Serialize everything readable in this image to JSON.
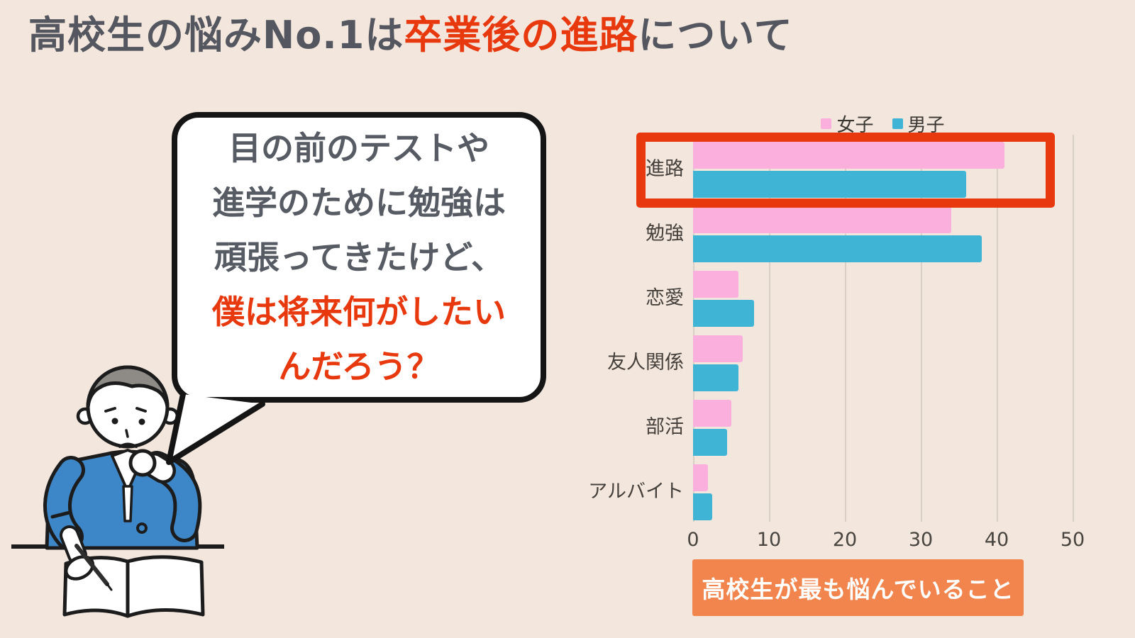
{
  "page": {
    "background": "#F3E6DD"
  },
  "title": {
    "prefix": "高校生の悩みNo.1は",
    "highlight": "卒業後の進路",
    "suffix": "について",
    "highlight_color": "#E8380D",
    "text_color": "#54575F"
  },
  "speech_bubble": {
    "lines": [
      {
        "text": "目の前のテストや",
        "color": "gray"
      },
      {
        "text": "進学のために勉強は",
        "color": "gray"
      },
      {
        "text": "頑張ってきたけど、",
        "color": "gray"
      },
      {
        "text": "僕は将来何がしたい",
        "color": "red"
      },
      {
        "text": "んだろう？",
        "color": "red"
      }
    ]
  },
  "chart_data": {
    "type": "bar",
    "orientation": "horizontal",
    "title": "",
    "categories": [
      "進路",
      "勉強",
      "恋愛",
      "友人関係",
      "部活",
      "アルバイト"
    ],
    "series": [
      {
        "name": "女子",
        "color": "#FAAFDD",
        "values": [
          41,
          34,
          6,
          6.5,
          5,
          2
        ]
      },
      {
        "name": "男子",
        "color": "#3FB4D5",
        "values": [
          36,
          38,
          8,
          6,
          4.5,
          2.5
        ]
      }
    ],
    "xlim": [
      0,
      50
    ],
    "xticks": [
      0,
      10,
      20,
      30,
      40,
      50
    ],
    "grid": true,
    "legend_position": "top",
    "highlight": {
      "category": "進路",
      "color": "#E8380D"
    }
  },
  "badge": {
    "label": "高校生が最も悩んでいること",
    "background": "#F2854D",
    "text_color": "#FFFFFF"
  },
  "colors": {
    "grid_line": "#D8CFC7",
    "bubble_border": "#151515",
    "bubble_text_gray": "#575B63",
    "jacket_blue": "#3D86C7",
    "hair_gray": "#8E8B87",
    "outline_black": "#1C1C1C"
  }
}
